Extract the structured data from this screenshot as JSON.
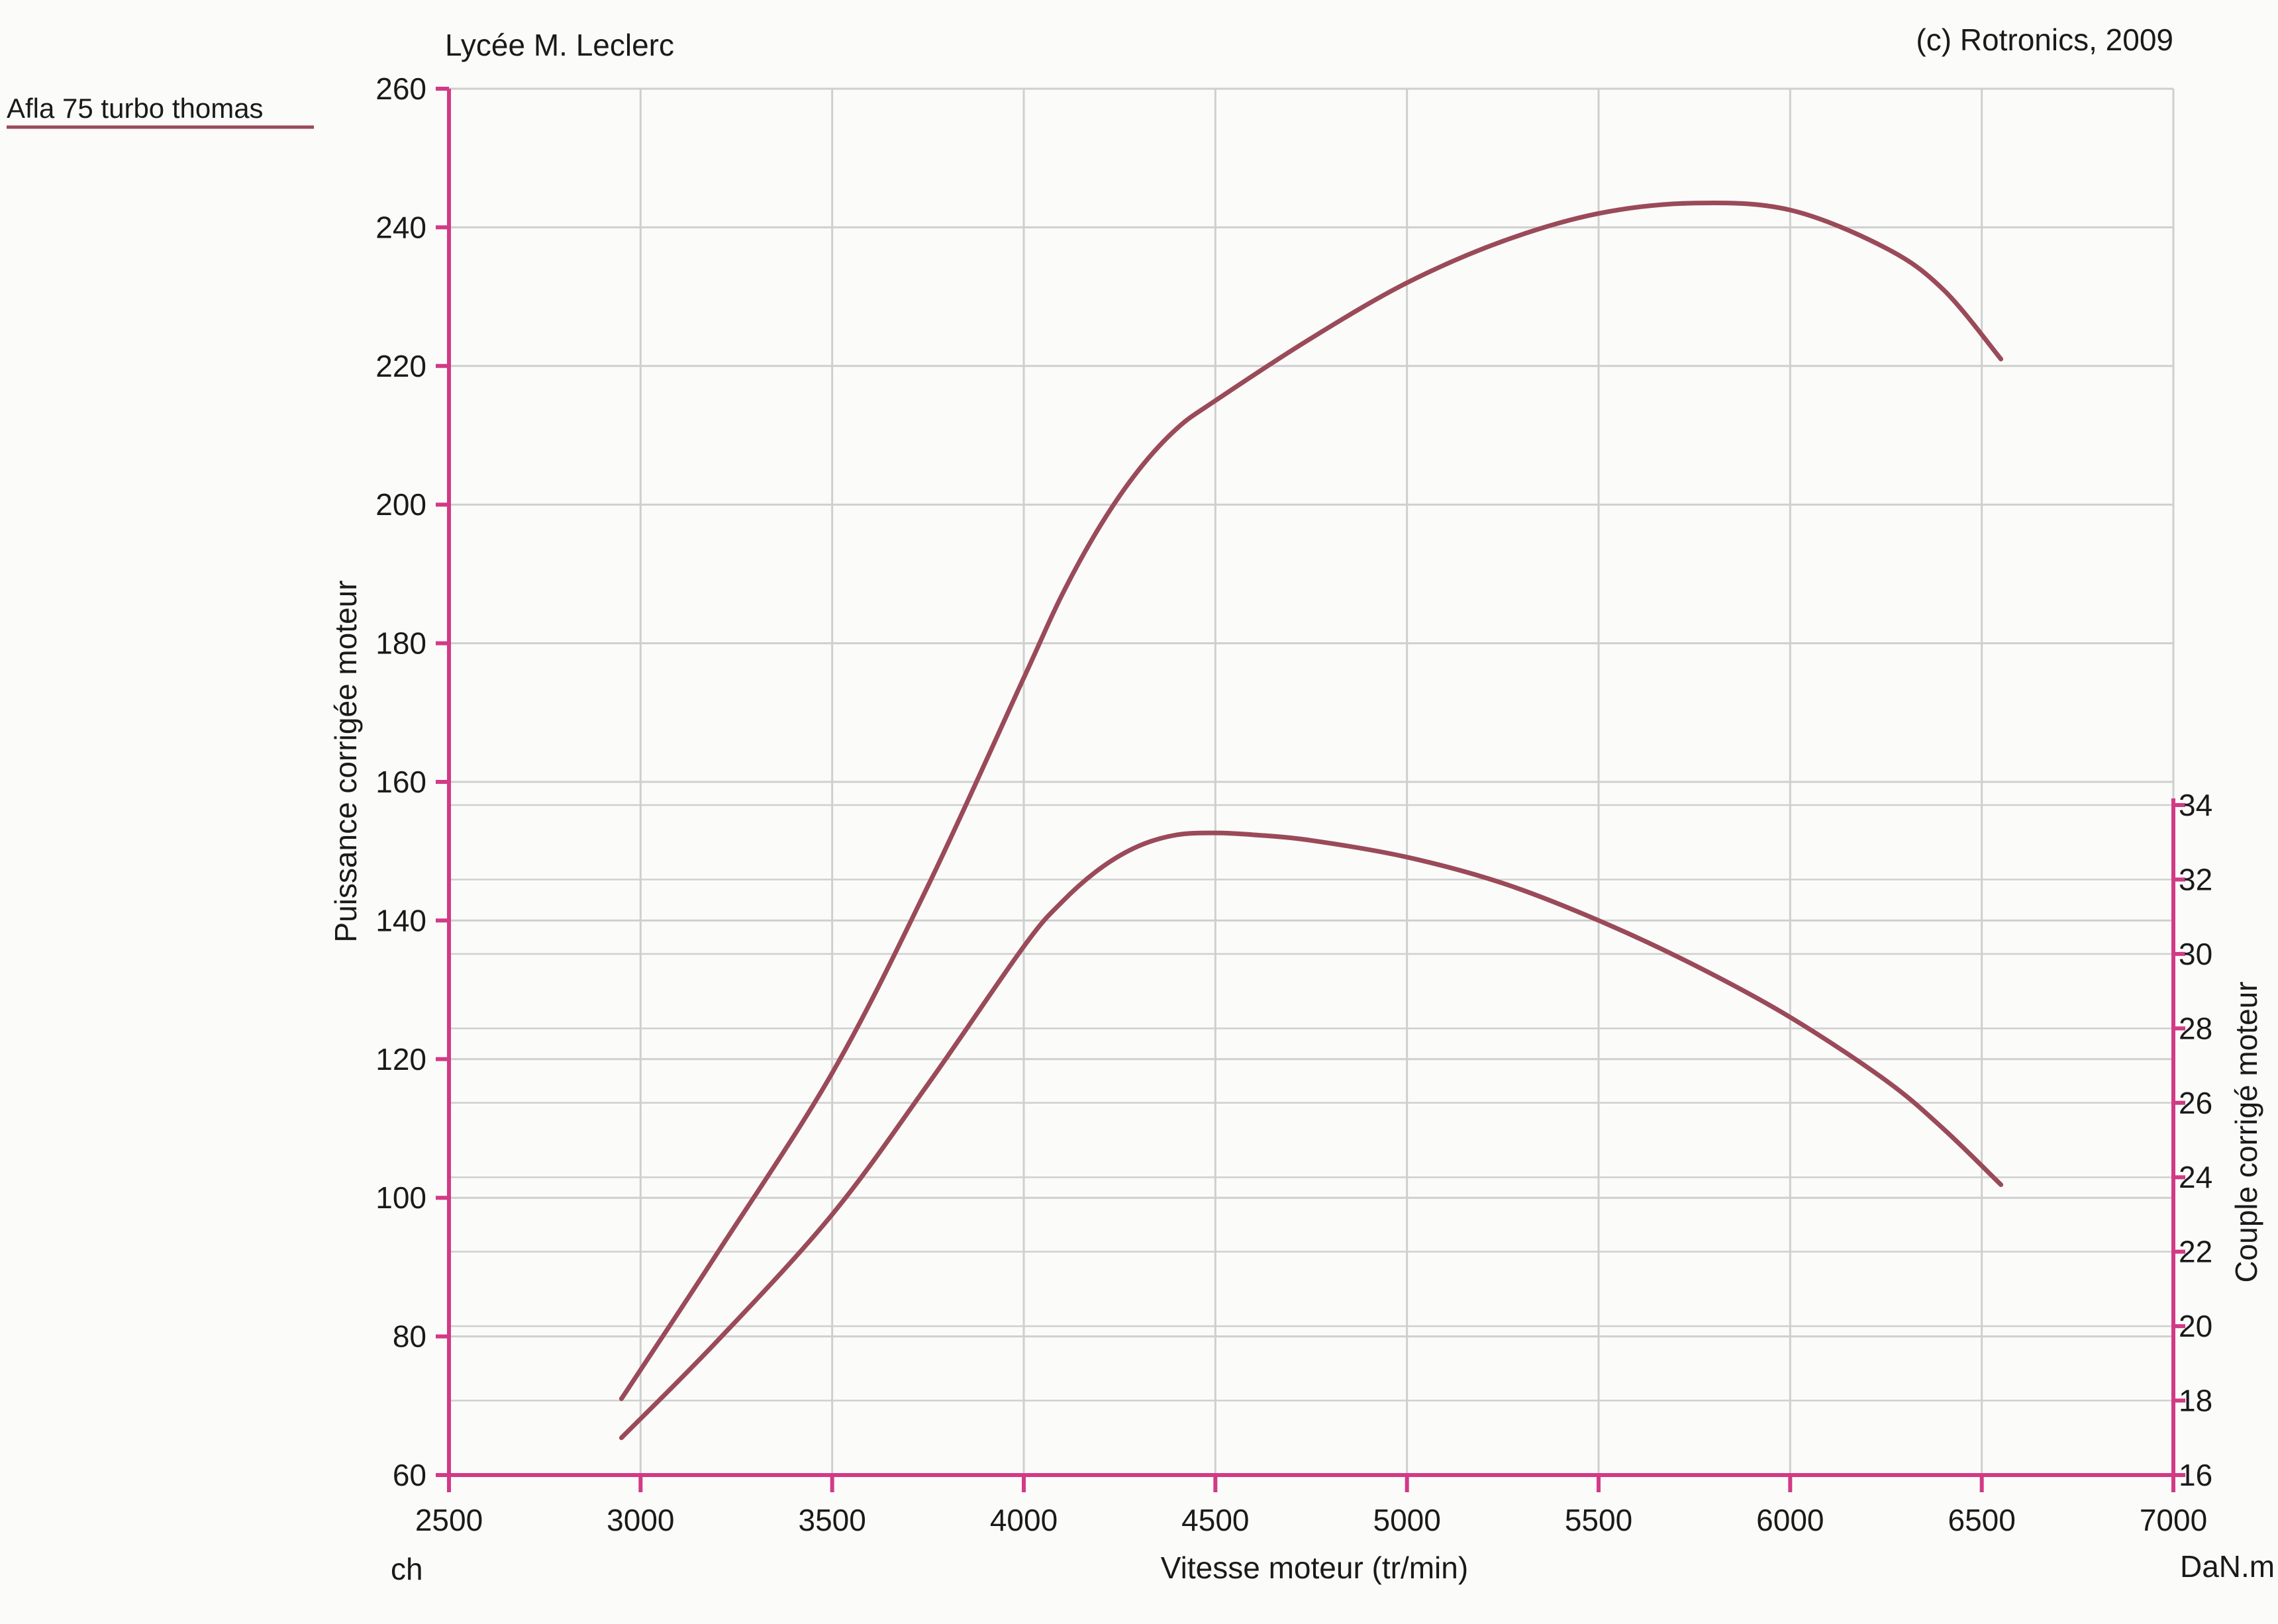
{
  "header": {
    "school": "Lycée M. Leclerc",
    "copyright": "(c) Rotronics, 2009",
    "test_name": "Afla 75 turbo thomas"
  },
  "colors": {
    "paper": "#fbfbfa",
    "grid": "#cfcfcf",
    "axis": "#d23a86",
    "curve": "#9a4a58",
    "underline": "#9a4a58",
    "text": "#1a1a1a"
  },
  "chart_data": {
    "type": "line",
    "xlabel": "Vitesse moteur (tr/min)",
    "ylabel_left": "Puissance corrigée moteur",
    "ylabel_right": "Couple corrigé moteur",
    "unit_left": "ch",
    "unit_right": "DaN.m",
    "xlim": [
      2500,
      7000
    ],
    "ylim_left": [
      60,
      260
    ],
    "ylim_right": [
      16,
      34
    ],
    "x_ticks": [
      "2500",
      "3000",
      "3500",
      "4000",
      "4500",
      "5000",
      "5500",
      "6000",
      "6500",
      "7000"
    ],
    "y_ticks_left": [
      "60",
      "80",
      "100",
      "120",
      "140",
      "160",
      "180",
      "200",
      "220",
      "240",
      "260"
    ],
    "y_ticks_right": [
      "16",
      "18",
      "20",
      "22",
      "24",
      "26",
      "28",
      "30",
      "32",
      "34"
    ],
    "grid": true,
    "series": [
      {
        "axis": "left",
        "x": [
          2950,
          3200,
          3500,
          3750,
          4000,
          4100,
          4200,
          4300,
          4400,
          4500,
          4750,
          5000,
          5250,
          5500,
          5750,
          6000,
          6250,
          6400,
          6550
        ],
        "y": [
          71,
          92,
          118,
          145,
          175,
          187,
          197,
          205,
          211,
          215,
          224,
          232,
          238,
          242,
          243.5,
          242.5,
          237,
          231,
          221
        ]
      },
      {
        "axis": "right",
        "x": [
          2950,
          3200,
          3500,
          3750,
          4000,
          4100,
          4200,
          4300,
          4400,
          4500,
          4600,
          4750,
          5000,
          5250,
          5500,
          5750,
          6000,
          6250,
          6400,
          6550
        ],
        "y": [
          17,
          19.6,
          23,
          26.5,
          30.2,
          31.4,
          32.3,
          32.9,
          33.2,
          33.25,
          33.2,
          33.05,
          32.6,
          31.9,
          30.9,
          29.7,
          28.3,
          26.6,
          25.3,
          23.8
        ]
      }
    ]
  }
}
